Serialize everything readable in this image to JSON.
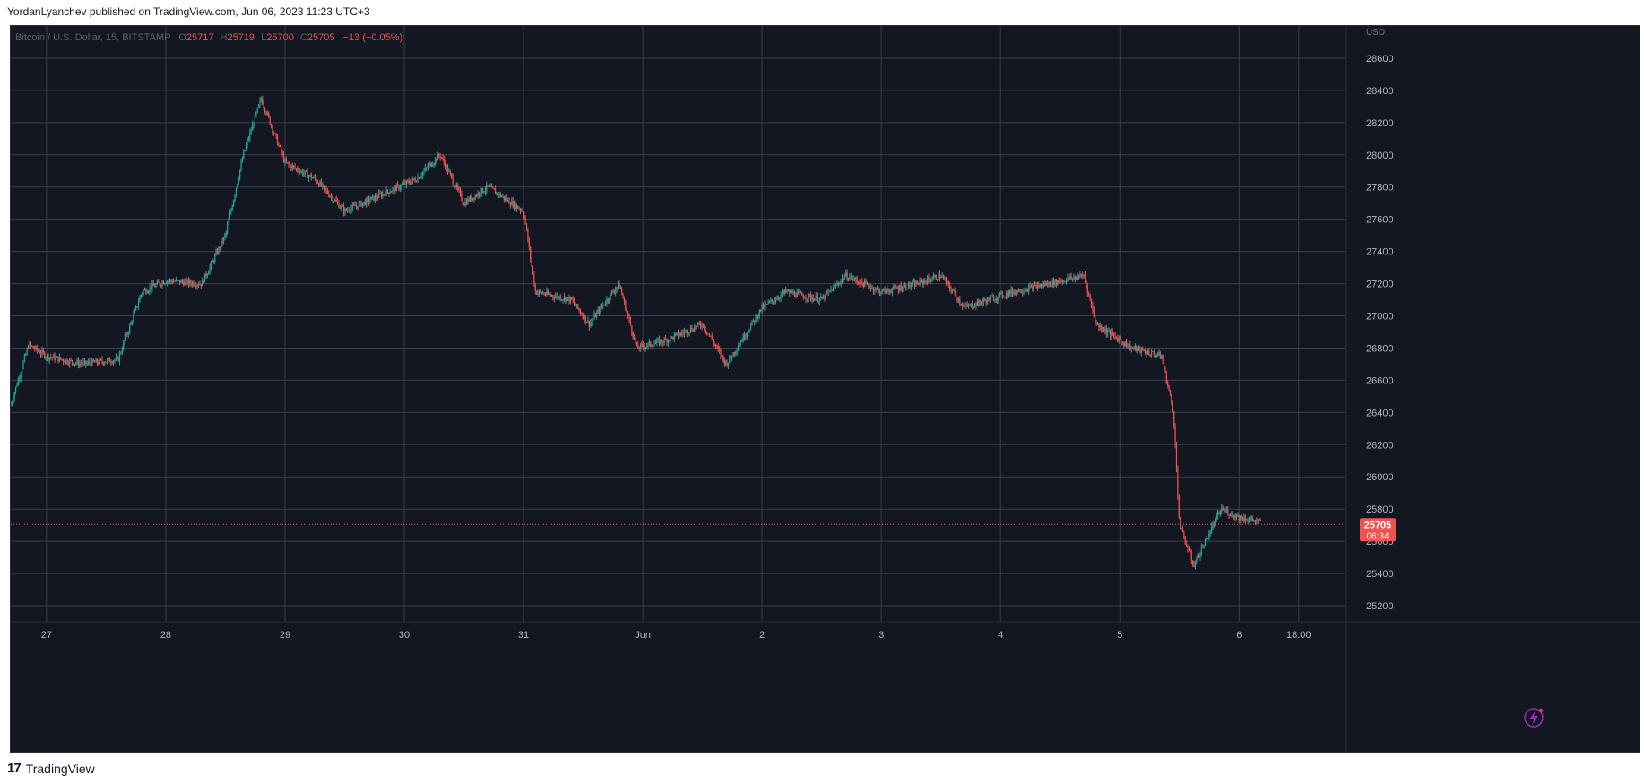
{
  "header": {
    "publish_line": "YordanLyanchev published on TradingView.com, Jun 06, 2023 11:23 UTC+3"
  },
  "legend": {
    "symbol": "Bitcoin / U.S. Dollar, 15, BITSTAMP",
    "o_label": "O",
    "o_value": "25717",
    "h_label": "H",
    "h_value": "25719",
    "l_label": "L",
    "l_value": "25700",
    "c_label": "C",
    "c_value": "25705",
    "change": "−13 (−0.05%)"
  },
  "price_axis": {
    "currency": "USD",
    "last_price": "25705",
    "countdown": "06:34"
  },
  "footer": {
    "brand": "TradingView",
    "logo_glyph": "17"
  },
  "colors": {
    "background": "#131722",
    "grid": "#3a3f4b",
    "up": "#26a69a",
    "down": "#ef5350",
    "axis_text": "#b2b5be",
    "flash_icon": "#9c27b0"
  },
  "chart_data": {
    "type": "candlestick",
    "title": "Bitcoin / U.S. Dollar, 15, BITSTAMP",
    "ylim": [
      25100,
      28800
    ],
    "y_ticks": [
      25200,
      25400,
      25600,
      25800,
      26000,
      26200,
      26400,
      26600,
      26800,
      27000,
      27200,
      27400,
      27600,
      27800,
      28000,
      28200,
      28400,
      28600
    ],
    "x_labels": [
      "27",
      "28",
      "29",
      "30",
      "31",
      "Jun",
      "2",
      "3",
      "4",
      "5",
      "6",
      "18:00"
    ],
    "last_close": 25705,
    "price_path": [
      {
        "t": 0.0,
        "p": 26450
      },
      {
        "t": 0.15,
        "p": 26820
      },
      {
        "t": 0.3,
        "p": 26750
      },
      {
        "t": 0.6,
        "p": 26700
      },
      {
        "t": 0.9,
        "p": 26730
      },
      {
        "t": 1.1,
        "p": 27150
      },
      {
        "t": 1.3,
        "p": 27220
      },
      {
        "t": 1.6,
        "p": 27200
      },
      {
        "t": 1.8,
        "p": 27500
      },
      {
        "t": 1.95,
        "p": 28000
      },
      {
        "t": 2.1,
        "p": 28350
      },
      {
        "t": 2.3,
        "p": 27950
      },
      {
        "t": 2.55,
        "p": 27850
      },
      {
        "t": 2.8,
        "p": 27650
      },
      {
        "t": 3.1,
        "p": 27750
      },
      {
        "t": 3.4,
        "p": 27850
      },
      {
        "t": 3.6,
        "p": 28000
      },
      {
        "t": 3.8,
        "p": 27700
      },
      {
        "t": 4.0,
        "p": 27800
      },
      {
        "t": 4.3,
        "p": 27650
      },
      {
        "t": 4.4,
        "p": 27150
      },
      {
        "t": 4.7,
        "p": 27100
      },
      {
        "t": 4.85,
        "p": 26950
      },
      {
        "t": 5.1,
        "p": 27200
      },
      {
        "t": 5.25,
        "p": 26800
      },
      {
        "t": 5.5,
        "p": 26850
      },
      {
        "t": 5.8,
        "p": 26950
      },
      {
        "t": 6.0,
        "p": 26700
      },
      {
        "t": 6.3,
        "p": 27050
      },
      {
        "t": 6.5,
        "p": 27150
      },
      {
        "t": 6.8,
        "p": 27100
      },
      {
        "t": 7.0,
        "p": 27250
      },
      {
        "t": 7.3,
        "p": 27150
      },
      {
        "t": 7.6,
        "p": 27200
      },
      {
        "t": 7.8,
        "p": 27250
      },
      {
        "t": 8.0,
        "p": 27050
      },
      {
        "t": 8.4,
        "p": 27150
      },
      {
        "t": 8.7,
        "p": 27200
      },
      {
        "t": 9.0,
        "p": 27250
      },
      {
        "t": 9.1,
        "p": 26950
      },
      {
        "t": 9.4,
        "p": 26800
      },
      {
        "t": 9.65,
        "p": 26750
      },
      {
        "t": 9.75,
        "p": 26400
      },
      {
        "t": 9.8,
        "p": 25700
      },
      {
        "t": 9.92,
        "p": 25450
      },
      {
        "t": 10.05,
        "p": 25650
      },
      {
        "t": 10.15,
        "p": 25800
      },
      {
        "t": 10.3,
        "p": 25750
      },
      {
        "t": 10.48,
        "p": 25720
      }
    ]
  }
}
